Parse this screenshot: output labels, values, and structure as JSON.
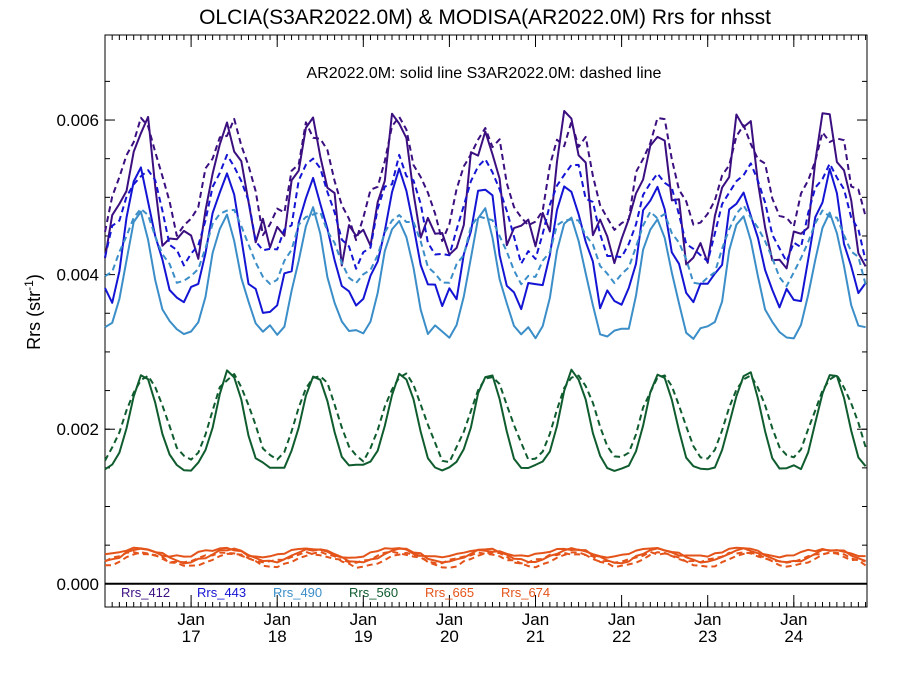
{
  "chart_data": {
    "type": "line",
    "title": "OLCIA(S3AR2022.0M) & MODISA(AR2022.0M)  Rrs for nhsst",
    "annotation": "AR2022.0M: solid line   S3AR2022.0M: dashed line",
    "ylabel": "Rrs (str",
    "ylabel_sup": "-1",
    "ylabel_end": ")",
    "ylim": [
      -0.0003,
      0.0071
    ],
    "xlim": [
      2016.0,
      2024.85
    ],
    "yticks": [
      {
        "value": 0.0,
        "label": "0.000"
      },
      {
        "value": 0.002,
        "label": "0.002"
      },
      {
        "value": 0.004,
        "label": "0.004"
      },
      {
        "value": 0.006,
        "label": "0.006"
      }
    ],
    "xticks": [
      {
        "value": 2017.0,
        "month": "Jan",
        "year": "17"
      },
      {
        "value": 2018.0,
        "month": "Jan",
        "year": "18"
      },
      {
        "value": 2019.0,
        "month": "Jan",
        "year": "19"
      },
      {
        "value": 2020.0,
        "month": "Jan",
        "year": "20"
      },
      {
        "value": 2021.0,
        "month": "Jan",
        "year": "21"
      },
      {
        "value": 2022.0,
        "month": "Jan",
        "year": "22"
      },
      {
        "value": 2023.0,
        "month": "Jan",
        "year": "23"
      },
      {
        "value": 2024.0,
        "month": "Jan",
        "year": "24"
      }
    ],
    "zero_line": true,
    "legend_placement": "bottom, inside plot",
    "series": [
      {
        "name": "Rrs_412",
        "color": "#3b0f80",
        "peak_offset": 0.4,
        "solid": {
          "base": 0.0044,
          "amp": 0.0016,
          "sharp": 2,
          "noise": 0.00035
        },
        "dashed": {
          "base": 0.0046,
          "amp": 0.0013,
          "sharp": 1,
          "noise": 0.0002
        }
      },
      {
        "name": "Rrs_443",
        "color": "#1414d4",
        "peak_offset": 0.4,
        "solid": {
          "base": 0.0037,
          "amp": 0.0015,
          "sharp": 2,
          "noise": 0.0002
        },
        "dashed": {
          "base": 0.0042,
          "amp": 0.0012,
          "sharp": 1,
          "noise": 0.00015
        }
      },
      {
        "name": "Rrs_490",
        "color": "#3b8ec8",
        "peak_offset": 0.4,
        "solid": {
          "base": 0.00325,
          "amp": 0.00155,
          "sharp": 2,
          "noise": 0.0001
        },
        "dashed": {
          "base": 0.0039,
          "amp": 0.0009,
          "sharp": 1,
          "noise": 0.0001
        }
      },
      {
        "name": "Rrs_560",
        "color": "#0f5c2e",
        "peak_offset": 0.45,
        "solid": {
          "base": 0.0015,
          "amp": 0.00125,
          "sharp": 2,
          "noise": 5e-05
        },
        "dashed": {
          "base": 0.0016,
          "amp": 0.0011,
          "sharp": 1,
          "noise": 4e-05
        }
      },
      {
        "name": "Rrs_665",
        "color": "#e4541a",
        "peak_offset": 0.45,
        "solid": {
          "base": 0.00028,
          "amp": 0.00017,
          "sharp": 1,
          "noise": 2e-05
        },
        "dashed": {
          "base": 0.00022,
          "amp": 0.00018,
          "sharp": 1,
          "noise": 2e-05
        }
      },
      {
        "name": "Rrs_674",
        "color": "#e4541a",
        "peak_offset": 0.35,
        "solid": {
          "base": 0.00035,
          "amp": 0.0001,
          "sharp": 1,
          "noise": 2e-05
        },
        "dashed": {
          "base": 0.00028,
          "amp": 0.00012,
          "sharp": 1,
          "noise": 2e-05
        }
      }
    ]
  }
}
